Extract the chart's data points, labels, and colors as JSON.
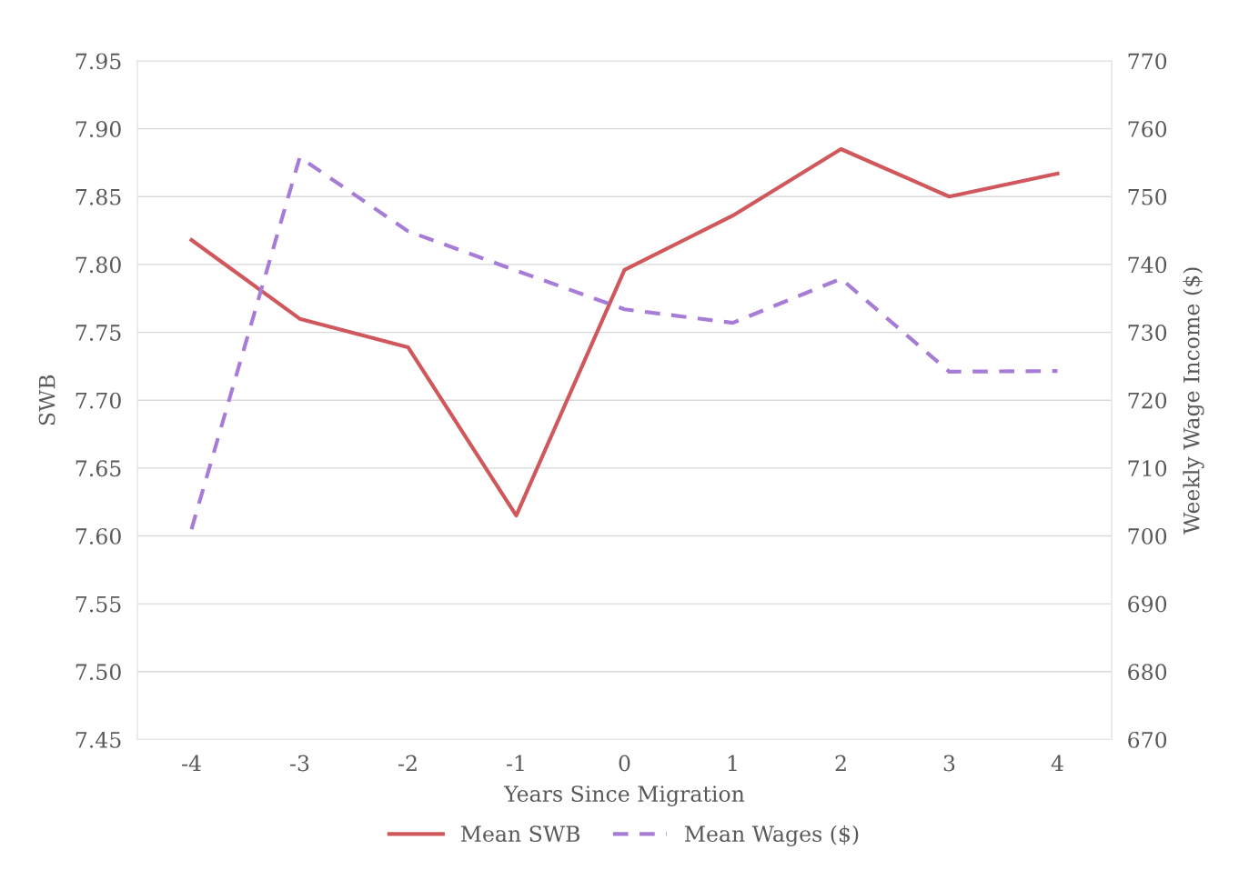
{
  "chart_data": {
    "type": "line",
    "xlabel": "Years Since Migration",
    "ylabel": "SWB",
    "y2label": "Weekly Wage Income ($)",
    "categories": [
      "-4",
      "-3",
      "-2",
      "-1",
      "0",
      "1",
      "2",
      "3",
      "4"
    ],
    "series": [
      {
        "name": "Mean SWB",
        "color": "#d0575b",
        "line_style": "solid",
        "values": [
          7.818,
          7.76,
          7.739,
          7.615,
          7.796,
          7.836,
          7.885,
          7.85,
          7.867
        ]
      },
      {
        "name": "Mean Wages ($)",
        "color": "#a77cd6",
        "line_style": "dashed",
        "axis": "y2",
        "values": [
          701.0,
          755.8,
          744.9,
          739.1,
          733.4,
          731.4,
          737.9,
          724.2,
          724.3
        ]
      }
    ],
    "ylim": [
      7.45,
      7.95
    ],
    "yticks": [
      {
        "value": 7.45,
        "label": "7.45"
      },
      {
        "value": 7.5,
        "label": "7.50"
      },
      {
        "value": 7.55,
        "label": "7.55"
      },
      {
        "value": 7.6,
        "label": "7.60"
      },
      {
        "value": 7.65,
        "label": "7.65"
      },
      {
        "value": 7.7,
        "label": "7.70"
      },
      {
        "value": 7.75,
        "label": "7.75"
      },
      {
        "value": 7.8,
        "label": "7.80"
      },
      {
        "value": 7.85,
        "label": "7.85"
      },
      {
        "value": 7.9,
        "label": "7.90"
      },
      {
        "value": 7.95,
        "label": "7.95"
      }
    ],
    "y2lim": [
      670,
      770
    ],
    "y2ticks": [
      670,
      680,
      690,
      700,
      710,
      720,
      730,
      740,
      750,
      760,
      770
    ],
    "grid": "y",
    "legend": "bottom",
    "marker": "none"
  }
}
